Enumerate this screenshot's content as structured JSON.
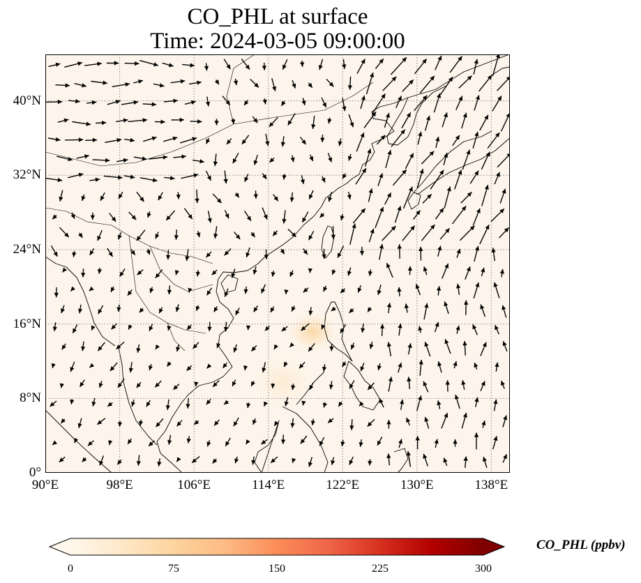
{
  "title": {
    "line1": "CO_PHL at surface",
    "line2": "Time: 2024-03-05 09:00:00"
  },
  "map": {
    "extent": {
      "lon_min": 90,
      "lon_max": 140,
      "lat_min": 0,
      "lat_max": 45
    },
    "gridline_style": "dotted",
    "lon_ticks": [
      {
        "value": 90,
        "label": "90°E"
      },
      {
        "value": 98,
        "label": "98°E"
      },
      {
        "value": 106,
        "label": "106°E"
      },
      {
        "value": 114,
        "label": "114°E"
      },
      {
        "value": 122,
        "label": "122°E"
      },
      {
        "value": 130,
        "label": "130°E"
      },
      {
        "value": 138,
        "label": "138°E"
      }
    ],
    "lat_ticks": [
      {
        "value": 0,
        "label": "0°"
      },
      {
        "value": 8,
        "label": "8°N"
      },
      {
        "value": 16,
        "label": "16°N"
      },
      {
        "value": 24,
        "label": "24°N"
      },
      {
        "value": 32,
        "label": "32°N"
      },
      {
        "value": 40,
        "label": "40°N"
      }
    ],
    "colors": {
      "background": "#fdf5eb",
      "coastline": "#000000",
      "grid": "#8a8a8a",
      "wind_arrow": "#000000"
    }
  },
  "colorbar": {
    "label": "CO_PHL (ppbv)",
    "min": 0,
    "max": 300,
    "extend": "both",
    "colormap": "OrRd",
    "stops": [
      "#fff7ec",
      "#fee8c8",
      "#fdd49e",
      "#fdbb84",
      "#fc8d59",
      "#ef6548",
      "#d7301f",
      "#b30000",
      "#7f0000"
    ],
    "ticks": [
      {
        "value": 0,
        "label": "0"
      },
      {
        "value": 75,
        "label": "75"
      },
      {
        "value": 150,
        "label": "150"
      },
      {
        "value": 225,
        "label": "225"
      },
      {
        "value": 300,
        "label": "300"
      }
    ]
  }
}
